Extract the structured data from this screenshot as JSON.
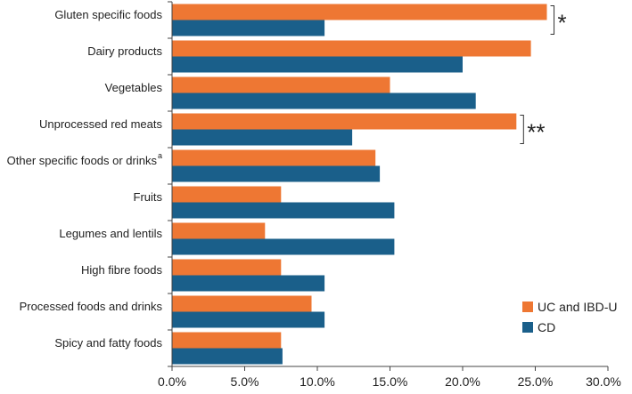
{
  "chart_data": {
    "type": "bar",
    "orientation": "horizontal",
    "title": "",
    "xlabel": "",
    "ylabel": "",
    "xlim": [
      0,
      30
    ],
    "x_ticks": [
      "0.0%",
      "5.0%",
      "10.0%",
      "15.0%",
      "20.0%",
      "25.0%",
      "30.0%"
    ],
    "categories": [
      "Gluten specific foods",
      "Dairy products",
      "Vegetables",
      "Unprocessed red meats",
      "Other specific foods or drinks",
      "Fruits",
      "Legumes and lentils",
      "High fibre foods",
      "Processed foods and drinks",
      "Spicy and fatty foods"
    ],
    "category_superscripts": [
      "",
      "",
      "",
      "",
      "a",
      "",
      "",
      "",
      "",
      ""
    ],
    "series": [
      {
        "name": "UC and IBD-U",
        "color": "#ee7733",
        "values": [
          25.8,
          24.7,
          15.0,
          23.7,
          14.0,
          7.5,
          6.4,
          7.5,
          9.6,
          7.5
        ]
      },
      {
        "name": "CD",
        "color": "#1a5f8a",
        "values": [
          10.5,
          20.0,
          20.9,
          12.4,
          14.3,
          15.3,
          15.3,
          10.5,
          10.5,
          7.6
        ]
      }
    ],
    "legend_position": "lower-right",
    "significance_annotations": [
      {
        "category_index": 0,
        "label": "*"
      },
      {
        "category_index": 3,
        "label": "**"
      }
    ]
  }
}
